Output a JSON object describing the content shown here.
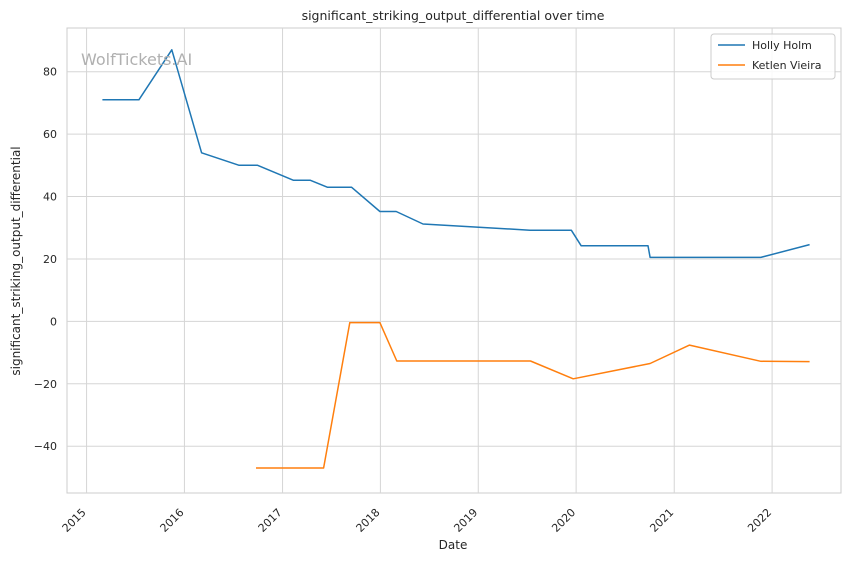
{
  "watermark": "WolfTickets.AI",
  "chart_data": {
    "type": "line",
    "title": "significant_striking_output_differential over time",
    "xlabel": "Date",
    "ylabel": "significant_striking_output_differential",
    "x_ticks": [
      "2015",
      "2016",
      "2017",
      "2018",
      "2019",
      "2020",
      "2021",
      "2022"
    ],
    "y_ticks": [
      -40,
      -20,
      0,
      20,
      40,
      60,
      80
    ],
    "xlim": [
      "2014-10-20",
      "2022-09-15"
    ],
    "ylim": [
      -55,
      94
    ],
    "grid": true,
    "legend_position": "top-right",
    "series": [
      {
        "name": "Holly Holm",
        "color": "#1f77b4",
        "points": [
          [
            "2015-03-01",
            71
          ],
          [
            "2015-07-15",
            71
          ],
          [
            "2015-11-15",
            87
          ],
          [
            "2016-03-05",
            54
          ],
          [
            "2016-07-23",
            50
          ],
          [
            "2016-09-30",
            50
          ],
          [
            "2017-02-11",
            45.2
          ],
          [
            "2017-04-15",
            45.2
          ],
          [
            "2017-06-17",
            43
          ],
          [
            "2017-09-15",
            43
          ],
          [
            "2017-12-30",
            35.2
          ],
          [
            "2018-03-01",
            35.2
          ],
          [
            "2018-06-09",
            31.2
          ],
          [
            "2019-07-13",
            29.2
          ],
          [
            "2019-12-14",
            29.2
          ],
          [
            "2020-01-20",
            24.2
          ],
          [
            "2020-09-25",
            24.2
          ],
          [
            "2020-10-03",
            20.5
          ],
          [
            "2021-11-20",
            20.5
          ],
          [
            "2022-05-21",
            24.6
          ]
        ]
      },
      {
        "name": "Ketlen Vieira",
        "color": "#ff7f0e",
        "points": [
          [
            "2016-09-24",
            -47
          ],
          [
            "2017-06-03",
            -47
          ],
          [
            "2017-09-09",
            -0.4
          ],
          [
            "2017-12-30",
            -0.4
          ],
          [
            "2018-03-03",
            -12.7
          ],
          [
            "2019-07-15",
            -12.7
          ],
          [
            "2019-12-21",
            -18.4
          ],
          [
            "2020-10-03",
            -13.5
          ],
          [
            "2021-02-27",
            -7.6
          ],
          [
            "2021-11-20",
            -12.8
          ],
          [
            "2022-05-21",
            -12.9
          ]
        ]
      }
    ]
  }
}
